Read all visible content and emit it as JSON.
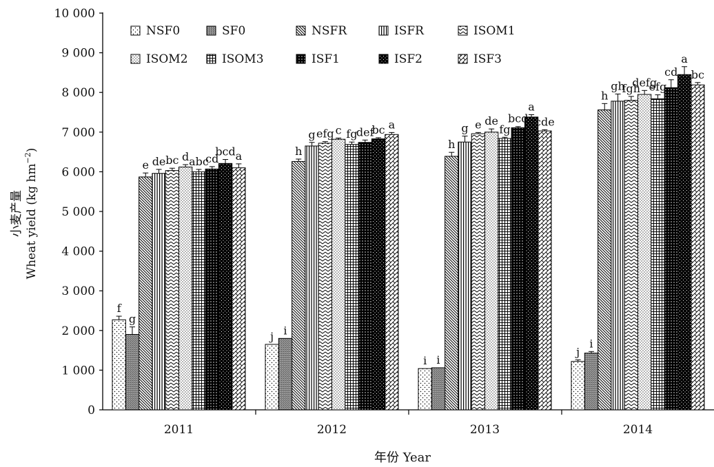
{
  "chart_data": {
    "type": "bar",
    "title": "",
    "xlabel": "年份 Year",
    "ylabel_cn": "小麦产量",
    "ylabel_en": "Wheat yield (kg hm",
    "ylabel_sup": "−2",
    "ylabel_close": ")",
    "ylim": [
      0,
      10000
    ],
    "yticks": [
      0,
      1000,
      2000,
      3000,
      4000,
      5000,
      6000,
      7000,
      8000,
      9000,
      10000
    ],
    "ytick_labels": [
      "0",
      "1 000",
      "2 000",
      "3 000",
      "4 000",
      "5 000",
      "6 000",
      "7 000",
      "8 000",
      "9 000",
      "10 000"
    ],
    "categories": [
      "2011",
      "2012",
      "2013",
      "2014"
    ],
    "grid": false,
    "legend_position": "top-left, inside",
    "series": [
      {
        "name": "NSF0",
        "pattern": "dots-sparse",
        "values": [
          2270,
          1650,
          1040,
          1220
        ],
        "errors": [
          90,
          0,
          0,
          40
        ],
        "letters": [
          "f",
          "j",
          "i",
          "j"
        ]
      },
      {
        "name": "SF0",
        "pattern": "gray-speckle",
        "values": [
          1900,
          1800,
          1060,
          1430
        ],
        "errors": [
          190,
          0,
          0,
          40
        ],
        "letters": [
          "g",
          "i",
          "i",
          "i"
        ]
      },
      {
        "name": "NSFR",
        "pattern": "diag-dense",
        "values": [
          5870,
          6260,
          6390,
          7560
        ],
        "errors": [
          100,
          60,
          100,
          160
        ],
        "letters": [
          "e",
          "h",
          "h",
          "h"
        ]
      },
      {
        "name": "ISFR",
        "pattern": "vertical",
        "values": [
          5960,
          6650,
          6750,
          7780
        ],
        "errors": [
          100,
          90,
          150,
          180
        ],
        "letters": [
          "de",
          "g",
          "g",
          "gh"
        ]
      },
      {
        "name": "ISOM1",
        "pattern": "zigzag",
        "values": [
          6030,
          6720,
          6960,
          7800
        ],
        "errors": [
          60,
          40,
          30,
          100
        ],
        "letters": [
          "bc",
          "efg",
          "e",
          "fgh"
        ]
      },
      {
        "name": "ISOM2",
        "pattern": "dots-dense",
        "values": [
          6120,
          6820,
          7000,
          7950
        ],
        "errors": [
          60,
          30,
          80,
          100
        ],
        "letters": [
          "d",
          "c",
          "de",
          "defg"
        ]
      },
      {
        "name": "ISOM3",
        "pattern": "grid",
        "values": [
          6000,
          6690,
          6840,
          7840
        ],
        "errors": [
          60,
          60,
          30,
          100
        ],
        "letters": [
          "abc",
          "fg",
          "fg",
          "efg"
        ]
      },
      {
        "name": "ISF1",
        "pattern": "black-dots",
        "values": [
          6070,
          6740,
          7110,
          8120
        ],
        "errors": [
          60,
          60,
          30,
          200
        ],
        "letters": [
          "cd",
          "def",
          "bcd",
          "cd"
        ]
      },
      {
        "name": "ISF2",
        "pattern": "black-checker",
        "values": [
          6210,
          6830,
          7380,
          8450
        ],
        "errors": [
          100,
          30,
          60,
          200
        ],
        "letters": [
          "bcd",
          "bc",
          "a",
          "a"
        ]
      },
      {
        "name": "ISF3",
        "pattern": "herringbone",
        "values": [
          6100,
          6940,
          7030,
          8190
        ],
        "errors": [
          100,
          50,
          30,
          60
        ],
        "letters": [
          "a",
          "a",
          "cde",
          "bc"
        ]
      }
    ]
  }
}
